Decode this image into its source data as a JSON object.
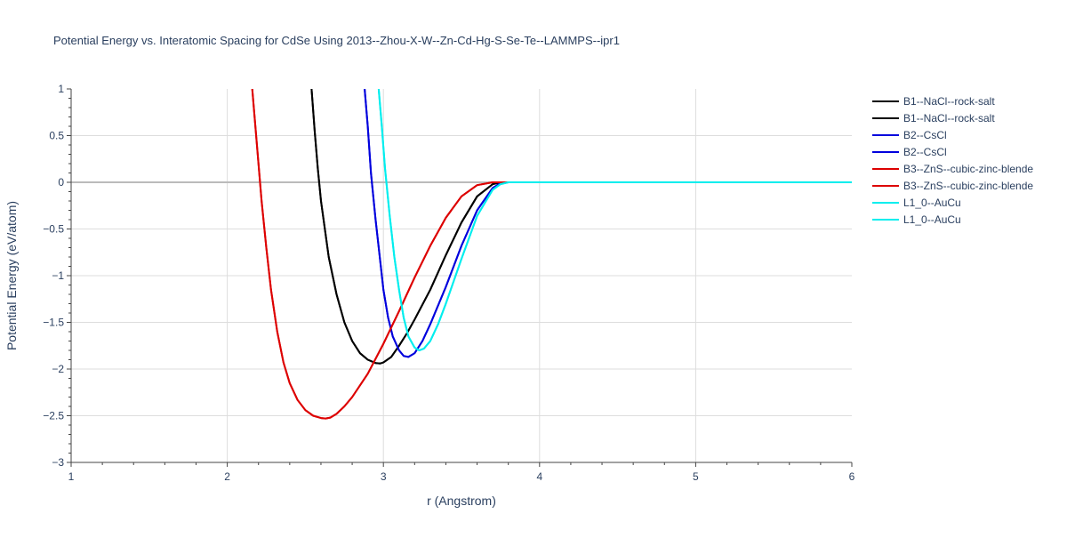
{
  "chart_data": {
    "type": "line",
    "title": "Potential Energy vs. Interatomic Spacing for CdSe Using 2013--Zhou-X-W--Zn-Cd-Hg-S-Se-Te--LAMMPS--ipr1",
    "xlabel": "r (Angstrom)",
    "ylabel": "Potential Energy (eV/atom)",
    "xlim": [
      1,
      6
    ],
    "ylim": [
      -3,
      1
    ],
    "x_ticks": [
      "1",
      "2",
      "3",
      "4",
      "5",
      "6"
    ],
    "y_ticks": [
      "1",
      "0.5",
      "0",
      "−0.5",
      "−1",
      "−1.5",
      "−2",
      "−2.5",
      "−3"
    ],
    "grid": true,
    "legend_position": "top-right",
    "series": [
      {
        "name": "B1--NaCl--rock-salt",
        "color": "#000000",
        "x": [
          2.54,
          2.56,
          2.58,
          2.6,
          2.65,
          2.7,
          2.75,
          2.8,
          2.85,
          2.9,
          2.95,
          2.98,
          3.0,
          3.05,
          3.1,
          3.15,
          3.2,
          3.3,
          3.4,
          3.5,
          3.6,
          3.7,
          3.75,
          3.8,
          4.0,
          5.0,
          6.0
        ],
        "y": [
          1.0,
          0.55,
          0.15,
          -0.2,
          -0.8,
          -1.2,
          -1.5,
          -1.7,
          -1.83,
          -1.9,
          -1.935,
          -1.94,
          -1.93,
          -1.87,
          -1.75,
          -1.62,
          -1.47,
          -1.15,
          -0.78,
          -0.43,
          -0.15,
          -0.02,
          0.0,
          0.0,
          0.0,
          0.0,
          0.0
        ]
      },
      {
        "name": "B1--NaCl--rock-salt",
        "color": "#000000",
        "x": [
          2.54,
          2.56,
          2.58,
          2.6,
          2.65,
          2.7,
          2.75,
          2.8,
          2.85,
          2.9,
          2.95,
          2.98,
          3.0,
          3.05,
          3.1,
          3.15,
          3.2,
          3.3,
          3.4,
          3.5,
          3.6,
          3.7,
          3.75,
          3.8,
          4.0,
          5.0,
          6.0
        ],
        "y": [
          1.0,
          0.55,
          0.15,
          -0.2,
          -0.8,
          -1.2,
          -1.5,
          -1.7,
          -1.83,
          -1.9,
          -1.935,
          -1.94,
          -1.93,
          -1.87,
          -1.75,
          -1.62,
          -1.47,
          -1.15,
          -0.78,
          -0.43,
          -0.15,
          -0.02,
          0.0,
          0.0,
          0.0,
          0.0,
          0.0
        ]
      },
      {
        "name": "B2--CsCl",
        "color": "#0000dd",
        "x": [
          2.88,
          2.9,
          2.92,
          2.95,
          2.98,
          3.0,
          3.03,
          3.06,
          3.1,
          3.13,
          3.16,
          3.2,
          3.25,
          3.3,
          3.4,
          3.5,
          3.6,
          3.7,
          3.75,
          3.8,
          4.0,
          5.0,
          6.0
        ],
        "y": [
          1.0,
          0.6,
          0.1,
          -0.4,
          -0.85,
          -1.15,
          -1.45,
          -1.65,
          -1.8,
          -1.86,
          -1.87,
          -1.83,
          -1.7,
          -1.52,
          -1.12,
          -0.68,
          -0.3,
          -0.06,
          -0.01,
          0.0,
          0.0,
          0.0,
          0.0
        ]
      },
      {
        "name": "B2--CsCl",
        "color": "#0000dd",
        "x": [
          2.88,
          2.9,
          2.92,
          2.95,
          2.98,
          3.0,
          3.03,
          3.06,
          3.1,
          3.13,
          3.16,
          3.2,
          3.25,
          3.3,
          3.4,
          3.5,
          3.6,
          3.7,
          3.75,
          3.8,
          4.0,
          5.0,
          6.0
        ],
        "y": [
          1.0,
          0.6,
          0.1,
          -0.4,
          -0.85,
          -1.15,
          -1.45,
          -1.65,
          -1.8,
          -1.86,
          -1.87,
          -1.83,
          -1.7,
          -1.52,
          -1.12,
          -0.68,
          -0.3,
          -0.06,
          -0.01,
          0.0,
          0.0,
          0.0,
          0.0
        ]
      },
      {
        "name": "B3--ZnS--cubic-zinc-blende",
        "color": "#dd0000",
        "x": [
          2.16,
          2.18,
          2.2,
          2.22,
          2.25,
          2.28,
          2.32,
          2.36,
          2.4,
          2.45,
          2.5,
          2.55,
          2.6,
          2.63,
          2.66,
          2.7,
          2.75,
          2.8,
          2.9,
          3.0,
          3.1,
          3.2,
          3.3,
          3.4,
          3.5,
          3.6,
          3.7,
          3.75,
          3.8,
          4.0,
          5.0,
          6.0
        ],
        "y": [
          1.0,
          0.6,
          0.2,
          -0.2,
          -0.7,
          -1.15,
          -1.6,
          -1.93,
          -2.15,
          -2.33,
          -2.44,
          -2.5,
          -2.525,
          -2.53,
          -2.52,
          -2.48,
          -2.4,
          -2.3,
          -2.05,
          -1.73,
          -1.38,
          -1.02,
          -0.68,
          -0.38,
          -0.15,
          -0.03,
          0.0,
          0.0,
          0.0,
          0.0,
          0.0,
          0.0
        ]
      },
      {
        "name": "B3--ZnS--cubic-zinc-blende",
        "color": "#dd0000",
        "x": [
          2.16,
          2.18,
          2.2,
          2.22,
          2.25,
          2.28,
          2.32,
          2.36,
          2.4,
          2.45,
          2.5,
          2.55,
          2.6,
          2.63,
          2.66,
          2.7,
          2.75,
          2.8,
          2.9,
          3.0,
          3.1,
          3.2,
          3.3,
          3.4,
          3.5,
          3.6,
          3.7,
          3.75,
          3.8,
          4.0,
          5.0,
          6.0
        ],
        "y": [
          1.0,
          0.6,
          0.2,
          -0.2,
          -0.7,
          -1.15,
          -1.6,
          -1.93,
          -2.15,
          -2.33,
          -2.44,
          -2.5,
          -2.525,
          -2.53,
          -2.52,
          -2.48,
          -2.4,
          -2.3,
          -2.05,
          -1.73,
          -1.38,
          -1.02,
          -0.68,
          -0.38,
          -0.15,
          -0.03,
          0.0,
          0.0,
          0.0,
          0.0,
          0.0,
          0.0
        ]
      },
      {
        "name": "L1_0--AuCu",
        "color": "#00eeee",
        "x": [
          2.97,
          2.99,
          3.01,
          3.04,
          3.07,
          3.1,
          3.13,
          3.16,
          3.2,
          3.23,
          3.26,
          3.3,
          3.35,
          3.4,
          3.5,
          3.6,
          3.7,
          3.75,
          3.8,
          4.0,
          5.0,
          6.0
        ],
        "y": [
          1.0,
          0.6,
          0.15,
          -0.35,
          -0.8,
          -1.15,
          -1.45,
          -1.65,
          -1.77,
          -1.8,
          -1.78,
          -1.7,
          -1.52,
          -1.3,
          -0.82,
          -0.36,
          -0.08,
          -0.02,
          0.0,
          0.0,
          0.0,
          0.0
        ]
      },
      {
        "name": "L1_0--AuCu",
        "color": "#00eeee",
        "x": [
          2.97,
          2.99,
          3.01,
          3.04,
          3.07,
          3.1,
          3.13,
          3.16,
          3.2,
          3.23,
          3.26,
          3.3,
          3.35,
          3.4,
          3.5,
          3.6,
          3.7,
          3.75,
          3.8,
          4.0,
          5.0,
          6.0
        ],
        "y": [
          1.0,
          0.6,
          0.15,
          -0.35,
          -0.8,
          -1.15,
          -1.45,
          -1.65,
          -1.77,
          -1.8,
          -1.78,
          -1.7,
          -1.52,
          -1.3,
          -0.82,
          -0.36,
          -0.08,
          -0.02,
          0.0,
          0.0,
          0.0,
          0.0
        ]
      }
    ]
  }
}
